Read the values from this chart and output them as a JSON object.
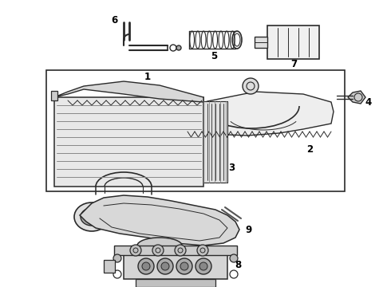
{
  "bg_color": "#ffffff",
  "line_color": "#2a2a2a",
  "fig_width": 4.9,
  "fig_height": 3.6,
  "dpi": 100,
  "label_fontsize": 8.5
}
